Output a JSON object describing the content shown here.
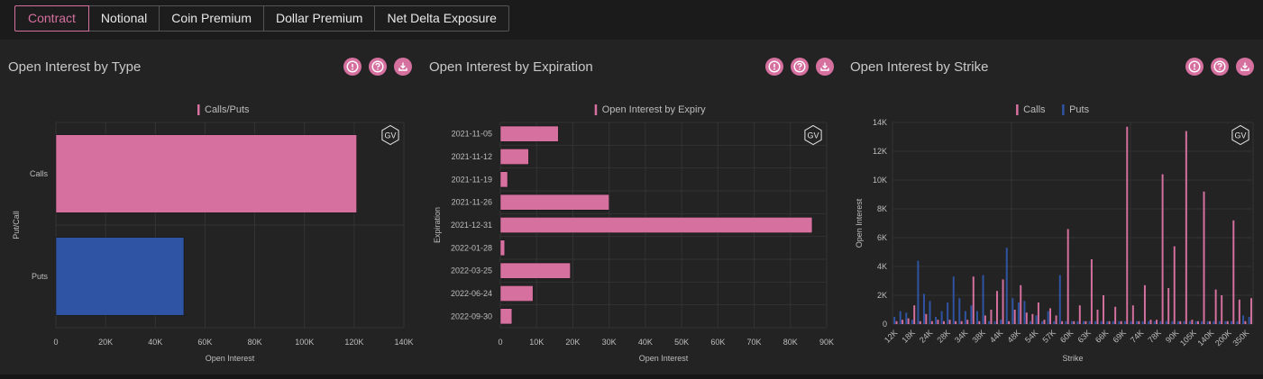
{
  "tabs": [
    {
      "label": "Contract",
      "active": true
    },
    {
      "label": "Notional",
      "active": false
    },
    {
      "label": "Coin Premium",
      "active": false
    },
    {
      "label": "Dollar Premium",
      "active": false
    },
    {
      "label": "Net Delta Exposure",
      "active": false
    }
  ],
  "colors": {
    "calls": "#d5709f",
    "puts": "#2f54a3",
    "accent": "#d5709f"
  },
  "icons": [
    "info-icon",
    "help-icon",
    "download-icon"
  ],
  "watermark": "GV",
  "panels": [
    {
      "title": "Open Interest by Type",
      "chart_data": {
        "type": "bar",
        "orientation": "horizontal",
        "categories": [
          "Calls",
          "Puts"
        ],
        "series": [
          {
            "name": "Calls/Puts",
            "values": [
              121000,
              51500
            ]
          }
        ],
        "xlabel": "Open Interest",
        "ylabel": "Put/Call",
        "xlim": [
          0,
          140000
        ],
        "xticks": [
          "0",
          "20K",
          "40K",
          "60K",
          "80K",
          "100K",
          "120K",
          "140K"
        ],
        "legend": [
          "Calls/Puts"
        ],
        "legend_placement": "top-center"
      }
    },
    {
      "title": "Open Interest by Expiration",
      "chart_data": {
        "type": "bar",
        "orientation": "horizontal",
        "categories": [
          "2021-11-05",
          "2021-11-12",
          "2021-11-19",
          "2021-11-26",
          "2021-12-31",
          "2022-01-28",
          "2022-03-25",
          "2022-06-24",
          "2022-09-30"
        ],
        "series": [
          {
            "name": "Open Interest by Expiry",
            "values": [
              16000,
              7800,
              2000,
              30000,
              86000,
              1200,
              19300,
              9000,
              3200
            ]
          }
        ],
        "xlabel": "Open Interest",
        "ylabel": "Expiration",
        "xlim": [
          0,
          90000
        ],
        "xticks": [
          "0",
          "10K",
          "20K",
          "30K",
          "40K",
          "50K",
          "60K",
          "70K",
          "80K",
          "90K"
        ],
        "legend": [
          "Open Interest by Expiry"
        ],
        "legend_placement": "top-center"
      }
    },
    {
      "title": "Open Interest by Strike",
      "chart_data": {
        "type": "bar",
        "orientation": "vertical",
        "x_tick_labels": [
          "12K",
          "18K",
          "24K",
          "28K",
          "34K",
          "38K",
          "44K",
          "48K",
          "54K",
          "57K",
          "60K",
          "63K",
          "66K",
          "69K",
          "74K",
          "78K",
          "90K",
          "105K",
          "140K",
          "200K",
          "350K"
        ],
        "series": [
          {
            "name": "Calls",
            "values": [
              200,
              300,
              400,
              1300,
              200,
              700,
              200,
              300,
              200,
              300,
              200,
              200,
              300,
              3300,
              200,
              600,
              1000,
              2300,
              3100,
              200,
              1000,
              2700,
              800,
              700,
              1500,
              300,
              1100,
              600,
              200,
              6600,
              200,
              1300,
              200,
              4500,
              1000,
              2000,
              200,
              1200,
              200,
              13700,
              1300,
              200,
              2700,
              300,
              300,
              10400,
              2500,
              5400,
              200,
              13400,
              300,
              200,
              9200,
              200,
              2400,
              2000,
              200,
              7200,
              1700,
              200,
              1800
            ]
          },
          {
            "name": "Puts",
            "values": [
              500,
              900,
              800,
              300,
              4400,
              2100,
              1600,
              500,
              900,
              1500,
              3300,
              1800,
              900,
              1300,
              900,
              3400,
              200,
              200,
              300,
              5300,
              1800,
              1500,
              1600,
              200,
              600,
              200,
              900,
              200,
              3400,
              200,
              200,
              200,
              200,
              200,
              200,
              200,
              200,
              200,
              200,
              200,
              200,
              200,
              200,
              200,
              200,
              200,
              200,
              200,
              200,
              200,
              200,
              200,
              200,
              200,
              200,
              200,
              200,
              200,
              200,
              600,
              500
            ]
          }
        ],
        "xlabel": "Strike",
        "ylabel": "Open Interest",
        "ylim": [
          0,
          14000
        ],
        "yticks": [
          "0",
          "2K",
          "4K",
          "6K",
          "8K",
          "10K",
          "12K",
          "14K"
        ],
        "legend": [
          "Calls",
          "Puts"
        ],
        "legend_placement": "top-center"
      }
    }
  ]
}
